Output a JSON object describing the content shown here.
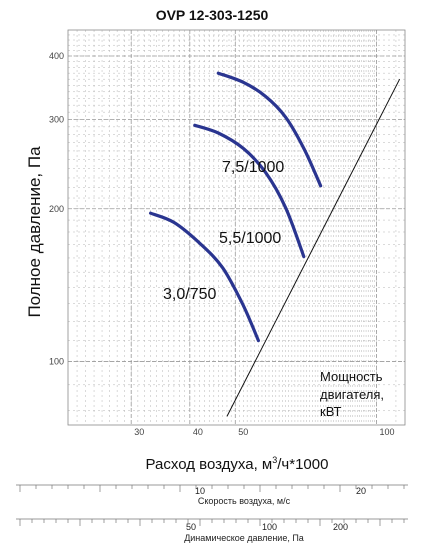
{
  "chart_data": {
    "type": "line",
    "title": "OVP 12-303-1250",
    "xlabel": "Расход воздуха, м³/ч*1000",
    "ylabel": "Полное давление, Па",
    "x_scale": "log",
    "y_scale": "log",
    "xlim": [
      22,
      115
    ],
    "ylim": [
      75,
      450
    ],
    "x_ticks": [
      30,
      40,
      50,
      100
    ],
    "y_ticks": [
      100,
      200,
      300,
      400
    ],
    "grid": true,
    "series": [
      {
        "name": "7,5/1000",
        "color": "#2a3590",
        "x": [
          46,
          52,
          58,
          64,
          70,
          76
        ],
        "y": [
          370,
          355,
          333,
          303,
          263,
          222
        ]
      },
      {
        "name": "5,5/1000",
        "color": "#2a3590",
        "x": [
          41,
          46,
          52,
          58,
          64,
          70
        ],
        "y": [
          292,
          282,
          263,
          236,
          201,
          161
        ]
      },
      {
        "name": "3,0/750",
        "color": "#2a3590",
        "x": [
          33,
          37,
          42,
          47,
          52,
          56
        ],
        "y": [
          196,
          188,
          171,
          153,
          129,
          110
        ]
      }
    ],
    "power_line": {
      "x": [
        48,
        112
      ],
      "y": [
        78,
        360
      ]
    },
    "annotation": "Мощность двигателя, кВТ"
  },
  "velocity_scale": {
    "label": "Скорость воздуха, м/с",
    "ticks": [
      "10",
      "20"
    ]
  },
  "dynamic_pressure_scale": {
    "label": "Динамическое давление, Па",
    "ticks": [
      "50",
      "100",
      "200"
    ]
  },
  "labels": {
    "annotation_line1": "Мощность",
    "annotation_line2": "двигателя,",
    "annotation_line3": "кВТ",
    "xlabel_main": "Расход воздуха, м",
    "xlabel_sup": "3",
    "xlabel_tail": "/ч*1000"
  }
}
